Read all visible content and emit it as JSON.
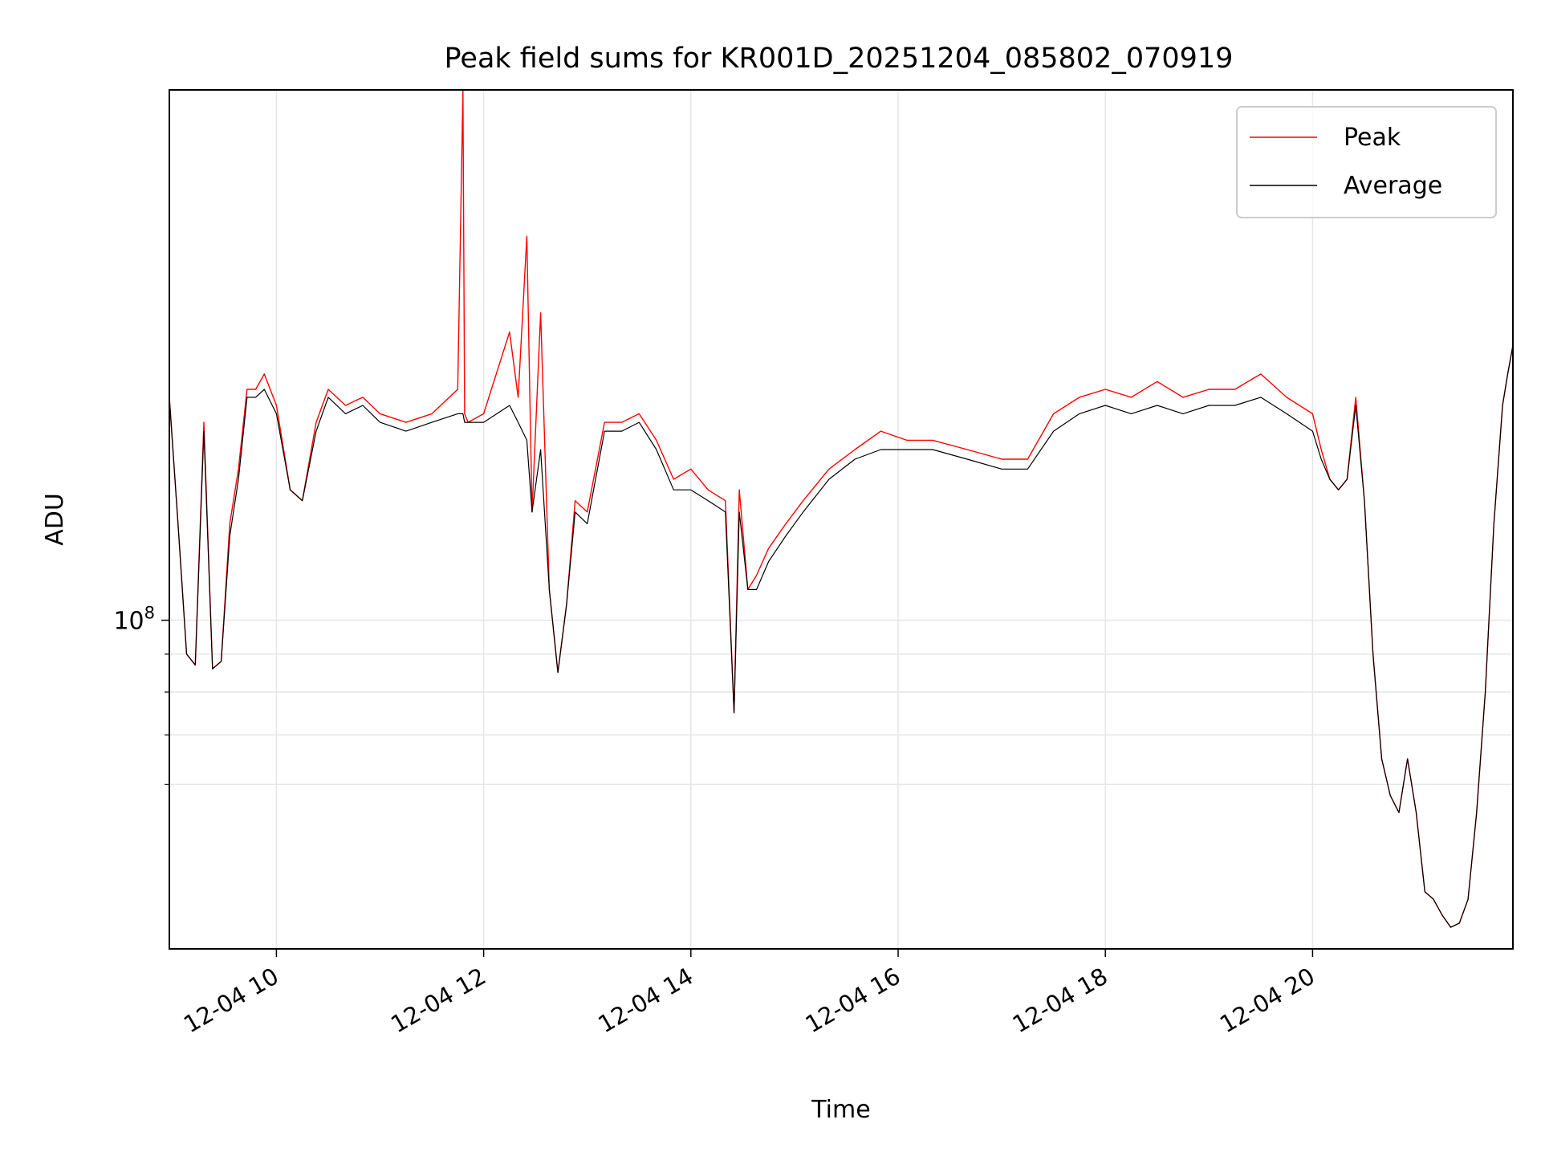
{
  "chart_data": {
    "type": "line",
    "title": "Peak field sums for KR001D_20251204_085802_070919",
    "xlabel": "Time",
    "ylabel": "ADU",
    "y_scale": "log",
    "ylim": [
      36000000,
      520000000
    ],
    "xlim": [
      "12-04 08:58",
      "12-04 21:56"
    ],
    "x_ticks": [
      "12-04 10",
      "12-04 12",
      "12-04 14",
      "12-04 16",
      "12-04 18",
      "12-04 20"
    ],
    "y_tick_label": {
      "base": "10",
      "exponent": "8",
      "value": 100000000
    },
    "y_minor_ticks": [
      60000000,
      70000000,
      80000000,
      90000000
    ],
    "grid": true,
    "legend_position": "top-right",
    "series": [
      {
        "name": "Peak",
        "color": "#ff0000",
        "x": [
          "12-04 08:58",
          "12-04 09:03",
          "12-04 09:08",
          "12-04 09:13",
          "12-04 09:18",
          "12-04 09:23",
          "12-04 09:28",
          "12-04 09:33",
          "12-04 09:38",
          "12-04 09:43",
          "12-04 09:48",
          "12-04 09:53",
          "12-04 10:00",
          "12-04 10:08",
          "12-04 10:15",
          "12-04 10:23",
          "12-04 10:30",
          "12-04 10:40",
          "12-04 10:50",
          "12-04 11:00",
          "12-04 11:15",
          "12-04 11:30",
          "12-04 11:45",
          "12-04 11:48",
          "12-04 11:49",
          "12-04 11:51",
          "12-04 12:00",
          "12-04 12:15",
          "12-04 12:20",
          "12-04 12:25",
          "12-04 12:28",
          "12-04 12:33",
          "12-04 12:38",
          "12-04 12:43",
          "12-04 12:48",
          "12-04 12:53",
          "12-04 13:00",
          "12-04 13:10",
          "12-04 13:20",
          "12-04 13:30",
          "12-04 13:40",
          "12-04 13:50",
          "12-04 14:00",
          "12-04 14:10",
          "12-04 14:20",
          "12-04 14:25",
          "12-04 14:28",
          "12-04 14:33",
          "12-04 14:38",
          "12-04 14:45",
          "12-04 14:55",
          "12-04 15:05",
          "12-04 15:20",
          "12-04 15:35",
          "12-04 15:50",
          "12-04 16:05",
          "12-04 16:20",
          "12-04 16:40",
          "12-04 17:00",
          "12-04 17:15",
          "12-04 17:30",
          "12-04 17:45",
          "12-04 18:00",
          "12-04 18:15",
          "12-04 18:30",
          "12-04 18:45",
          "12-04 19:00",
          "12-04 19:15",
          "12-04 19:30",
          "12-04 19:45",
          "12-04 20:00",
          "12-04 20:05",
          "12-04 20:10",
          "12-04 20:15",
          "12-04 20:20",
          "12-04 20:25",
          "12-04 20:30",
          "12-04 20:35",
          "12-04 20:40",
          "12-04 20:45",
          "12-04 20:50",
          "12-04 20:55",
          "12-04 21:00",
          "12-04 21:05",
          "12-04 21:10",
          "12-04 21:15",
          "12-04 21:20",
          "12-04 21:25",
          "12-04 21:30",
          "12-04 21:35",
          "12-04 21:40",
          "12-04 21:45",
          "12-04 21:50",
          "12-04 21:53",
          "12-04 21:56"
        ],
        "y": [
          200000000.0,
          135000000.0,
          90000000.0,
          87000000.0,
          185000000.0,
          86000000.0,
          88000000.0,
          135000000.0,
          160000000.0,
          205000000.0,
          205000000.0,
          215000000.0,
          195000000.0,
          150000000.0,
          145000000.0,
          185000000.0,
          205000000.0,
          195000000.0,
          200000000.0,
          190000000.0,
          185000000.0,
          190000000.0,
          205000000.0,
          520000000.0,
          190000000.0,
          185000000.0,
          190000000.0,
          245000000.0,
          200000000.0,
          330000000.0,
          140000000.0,
          260000000.0,
          110000000.0,
          85000000.0,
          105000000.0,
          145000000.0,
          140000000.0,
          185000000.0,
          185000000.0,
          190000000.0,
          175000000.0,
          155000000.0,
          160000000.0,
          150000000.0,
          145000000.0,
          75000000.0,
          150000000.0,
          110000000.0,
          115000000.0,
          125000000.0,
          135000000.0,
          145000000.0,
          160000000.0,
          170000000.0,
          180000000.0,
          175000000.0,
          175000000.0,
          170000000.0,
          165000000.0,
          165000000.0,
          190000000.0,
          200000000.0,
          205000000.0,
          200000000.0,
          210000000.0,
          200000000.0,
          205000000.0,
          205000000.0,
          215000000.0,
          200000000.0,
          190000000.0,
          170000000.0,
          155000000.0,
          150000000.0,
          155000000.0,
          200000000.0,
          145000000.0,
          90000000.0,
          65000000.0,
          58000000.0,
          55000000.0,
          65000000.0,
          55000000.0,
          43000000.0,
          42000000.0,
          40000000.0,
          38500000.0,
          39000000.0,
          42000000.0,
          55000000.0,
          80000000.0,
          135000000.0,
          195000000.0,
          215000000.0,
          235000000.0
        ]
      },
      {
        "name": "Average",
        "color": "#000000",
        "x": [
          "12-04 08:58",
          "12-04 09:03",
          "12-04 09:08",
          "12-04 09:13",
          "12-04 09:18",
          "12-04 09:23",
          "12-04 09:28",
          "12-04 09:33",
          "12-04 09:38",
          "12-04 09:43",
          "12-04 09:48",
          "12-04 09:53",
          "12-04 10:00",
          "12-04 10:08",
          "12-04 10:15",
          "12-04 10:23",
          "12-04 10:30",
          "12-04 10:40",
          "12-04 10:50",
          "12-04 11:00",
          "12-04 11:15",
          "12-04 11:30",
          "12-04 11:45",
          "12-04 11:48",
          "12-04 11:49",
          "12-04 11:51",
          "12-04 12:00",
          "12-04 12:15",
          "12-04 12:20",
          "12-04 12:25",
          "12-04 12:28",
          "12-04 12:33",
          "12-04 12:38",
          "12-04 12:43",
          "12-04 12:48",
          "12-04 12:53",
          "12-04 13:00",
          "12-04 13:10",
          "12-04 13:20",
          "12-04 13:30",
          "12-04 13:40",
          "12-04 13:50",
          "12-04 14:00",
          "12-04 14:10",
          "12-04 14:20",
          "12-04 14:25",
          "12-04 14:28",
          "12-04 14:33",
          "12-04 14:38",
          "12-04 14:45",
          "12-04 14:55",
          "12-04 15:05",
          "12-04 15:20",
          "12-04 15:35",
          "12-04 15:50",
          "12-04 16:05",
          "12-04 16:20",
          "12-04 16:40",
          "12-04 17:00",
          "12-04 17:15",
          "12-04 17:30",
          "12-04 17:45",
          "12-04 18:00",
          "12-04 18:15",
          "12-04 18:30",
          "12-04 18:45",
          "12-04 19:00",
          "12-04 19:15",
          "12-04 19:30",
          "12-04 19:45",
          "12-04 20:00",
          "12-04 20:05",
          "12-04 20:10",
          "12-04 20:15",
          "12-04 20:20",
          "12-04 20:25",
          "12-04 20:30",
          "12-04 20:35",
          "12-04 20:40",
          "12-04 20:45",
          "12-04 20:50",
          "12-04 20:55",
          "12-04 21:00",
          "12-04 21:05",
          "12-04 21:10",
          "12-04 21:15",
          "12-04 21:20",
          "12-04 21:25",
          "12-04 21:30",
          "12-04 21:35",
          "12-04 21:40",
          "12-04 21:45",
          "12-04 21:50",
          "12-04 21:53",
          "12-04 21:56"
        ],
        "y": [
          200000000.0,
          135000000.0,
          90000000.0,
          87000000.0,
          180000000.0,
          86000000.0,
          88000000.0,
          130000000.0,
          155000000.0,
          200000000.0,
          200000000.0,
          205000000.0,
          190000000.0,
          150000000.0,
          145000000.0,
          180000000.0,
          200000000.0,
          190000000.0,
          195000000.0,
          185000000.0,
          180000000.0,
          185000000.0,
          190000000.0,
          190000000.0,
          185000000.0,
          185000000.0,
          185000000.0,
          195000000.0,
          185000000.0,
          175000000.0,
          140000000.0,
          170000000.0,
          110000000.0,
          85000000.0,
          105000000.0,
          140000000.0,
          135000000.0,
          180000000.0,
          180000000.0,
          185000000.0,
          170000000.0,
          150000000.0,
          150000000.0,
          145000000.0,
          140000000.0,
          75000000.0,
          140000000.0,
          110000000.0,
          110000000.0,
          120000000.0,
          130000000.0,
          140000000.0,
          155000000.0,
          165000000.0,
          170000000.0,
          170000000.0,
          170000000.0,
          165000000.0,
          160000000.0,
          160000000.0,
          180000000.0,
          190000000.0,
          195000000.0,
          190000000.0,
          195000000.0,
          190000000.0,
          195000000.0,
          195000000.0,
          200000000.0,
          190000000.0,
          180000000.0,
          165000000.0,
          155000000.0,
          150000000.0,
          155000000.0,
          195000000.0,
          145000000.0,
          90000000.0,
          65000000.0,
          58000000.0,
          55000000.0,
          65000000.0,
          55000000.0,
          43000000.0,
          42000000.0,
          40000000.0,
          38500000.0,
          39000000.0,
          42000000.0,
          55000000.0,
          80000000.0,
          135000000.0,
          195000000.0,
          215000000.0,
          235000000.0
        ]
      }
    ]
  }
}
